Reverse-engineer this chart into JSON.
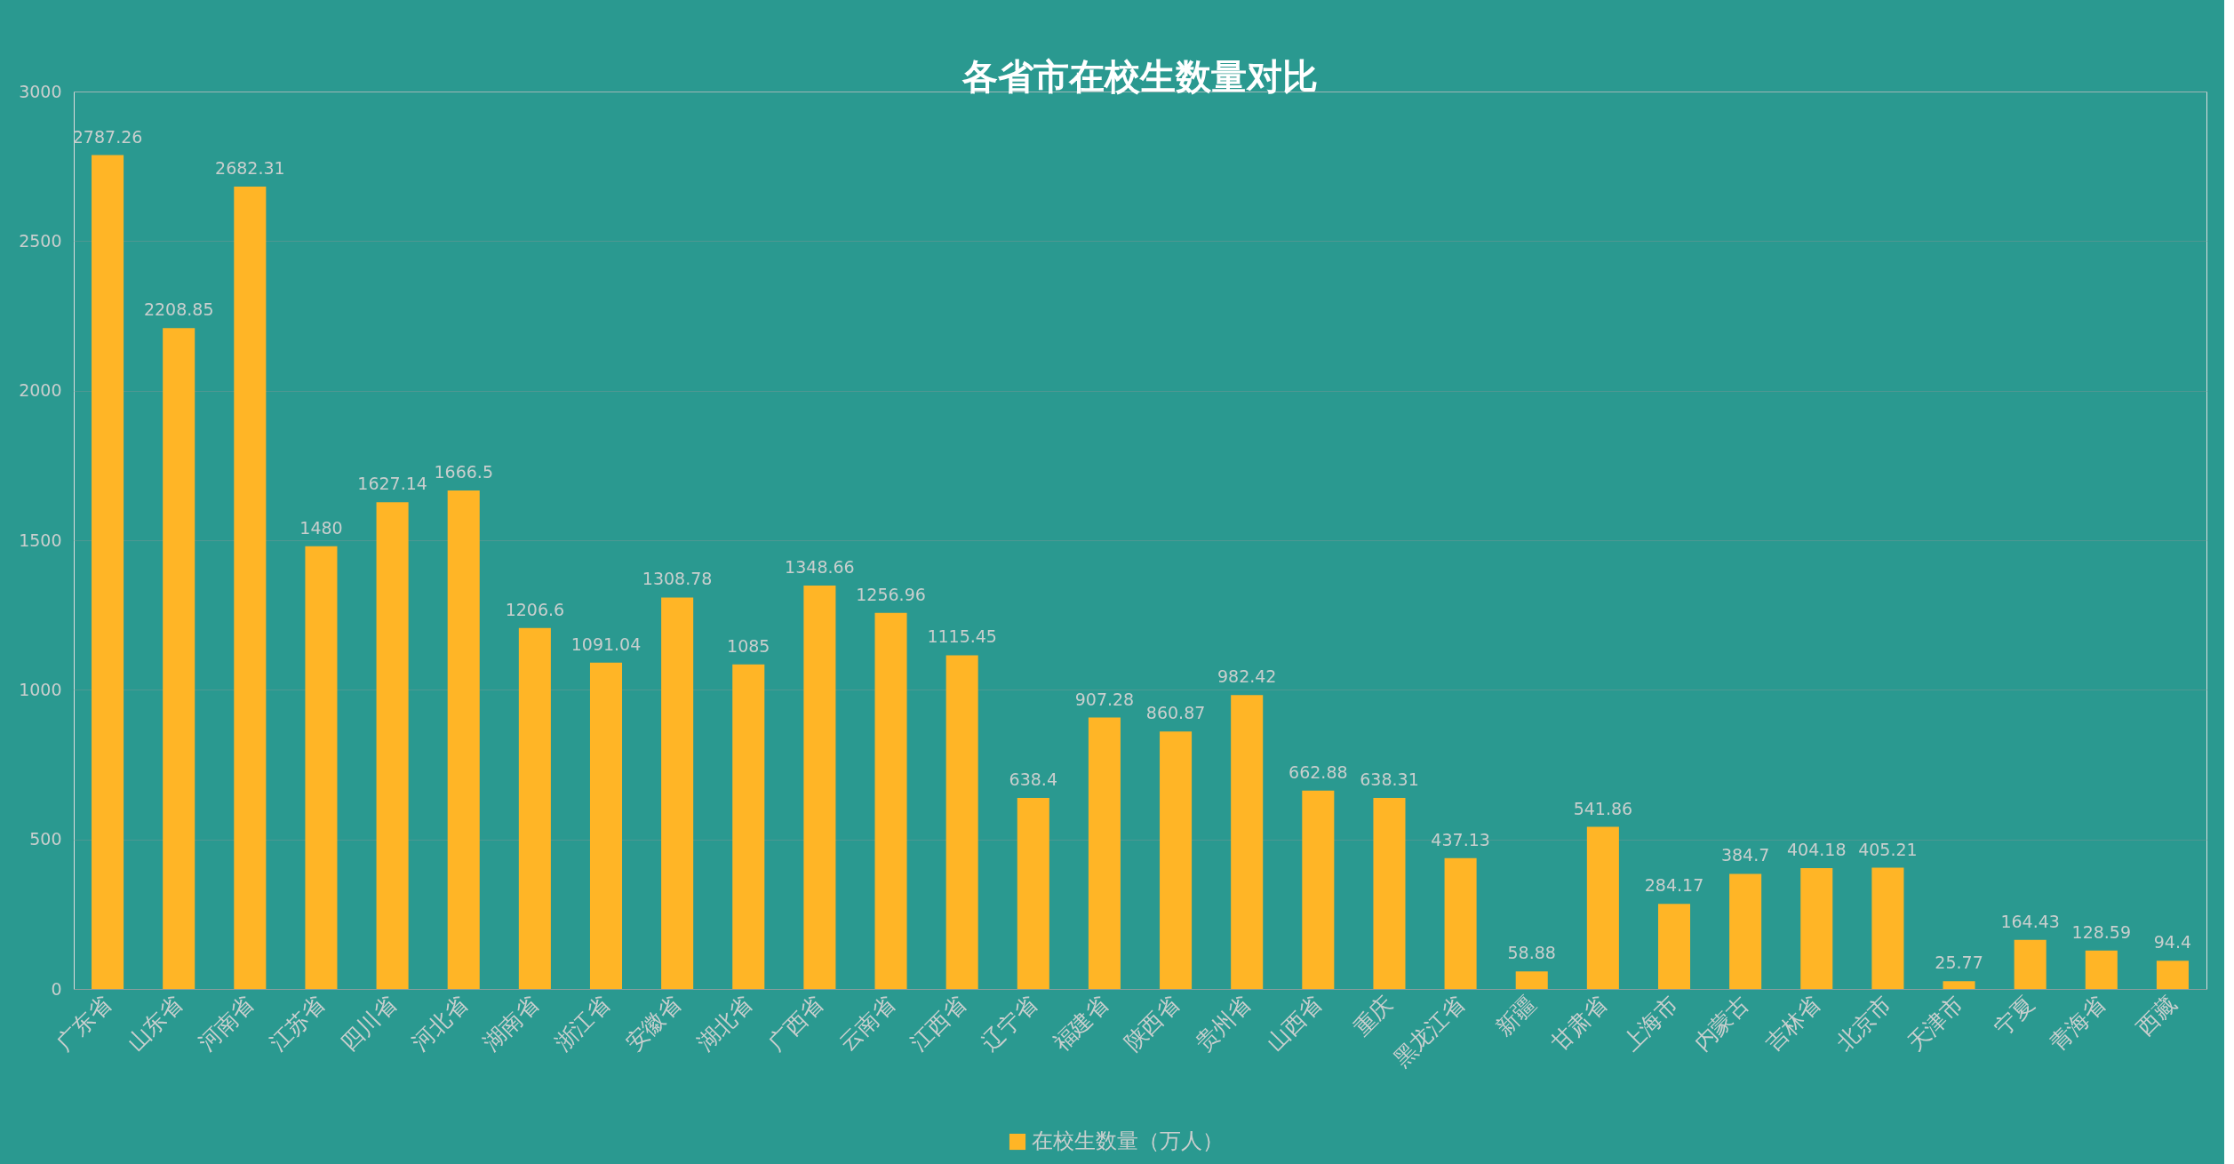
{
  "chart_data": {
    "type": "bar",
    "title": "各省市在校生数量对比",
    "categories": [
      "广东省",
      "山东省",
      "河南省",
      "江苏省",
      "四川省",
      "河北省",
      "湖南省",
      "浙江省",
      "安徽省",
      "湖北省",
      "广西省",
      "云南省",
      "江西省",
      "辽宁省",
      "福建省",
      "陕西省",
      "贵州省",
      "山西省",
      "重庆",
      "黑龙江省",
      "新疆",
      "甘肃省",
      "上海市",
      "内蒙古",
      "吉林省",
      "北京市",
      "天津市",
      "宁夏",
      "青海省",
      "西藏"
    ],
    "series": [
      {
        "name": "在校生数量（万人）",
        "color": "#ffb526",
        "values": [
          2787.26,
          2208.85,
          2682.31,
          1480,
          1627.14,
          1666.5,
          1206.6,
          1091.04,
          1308.78,
          1085,
          1348.66,
          1256.96,
          1115.45,
          638.4,
          907.28,
          860.87,
          982.42,
          662.88,
          638.31,
          437.13,
          58.88,
          541.86,
          284.17,
          384.7,
          404.18,
          405.21,
          25.77,
          164.43,
          128.59,
          94.4
        ]
      }
    ],
    "ylim": [
      0,
      3000
    ],
    "yticks": [
      0,
      500,
      1000,
      1500,
      2000,
      2500,
      3000
    ],
    "grid": "y",
    "legend": "bottom",
    "data_labels": true
  }
}
